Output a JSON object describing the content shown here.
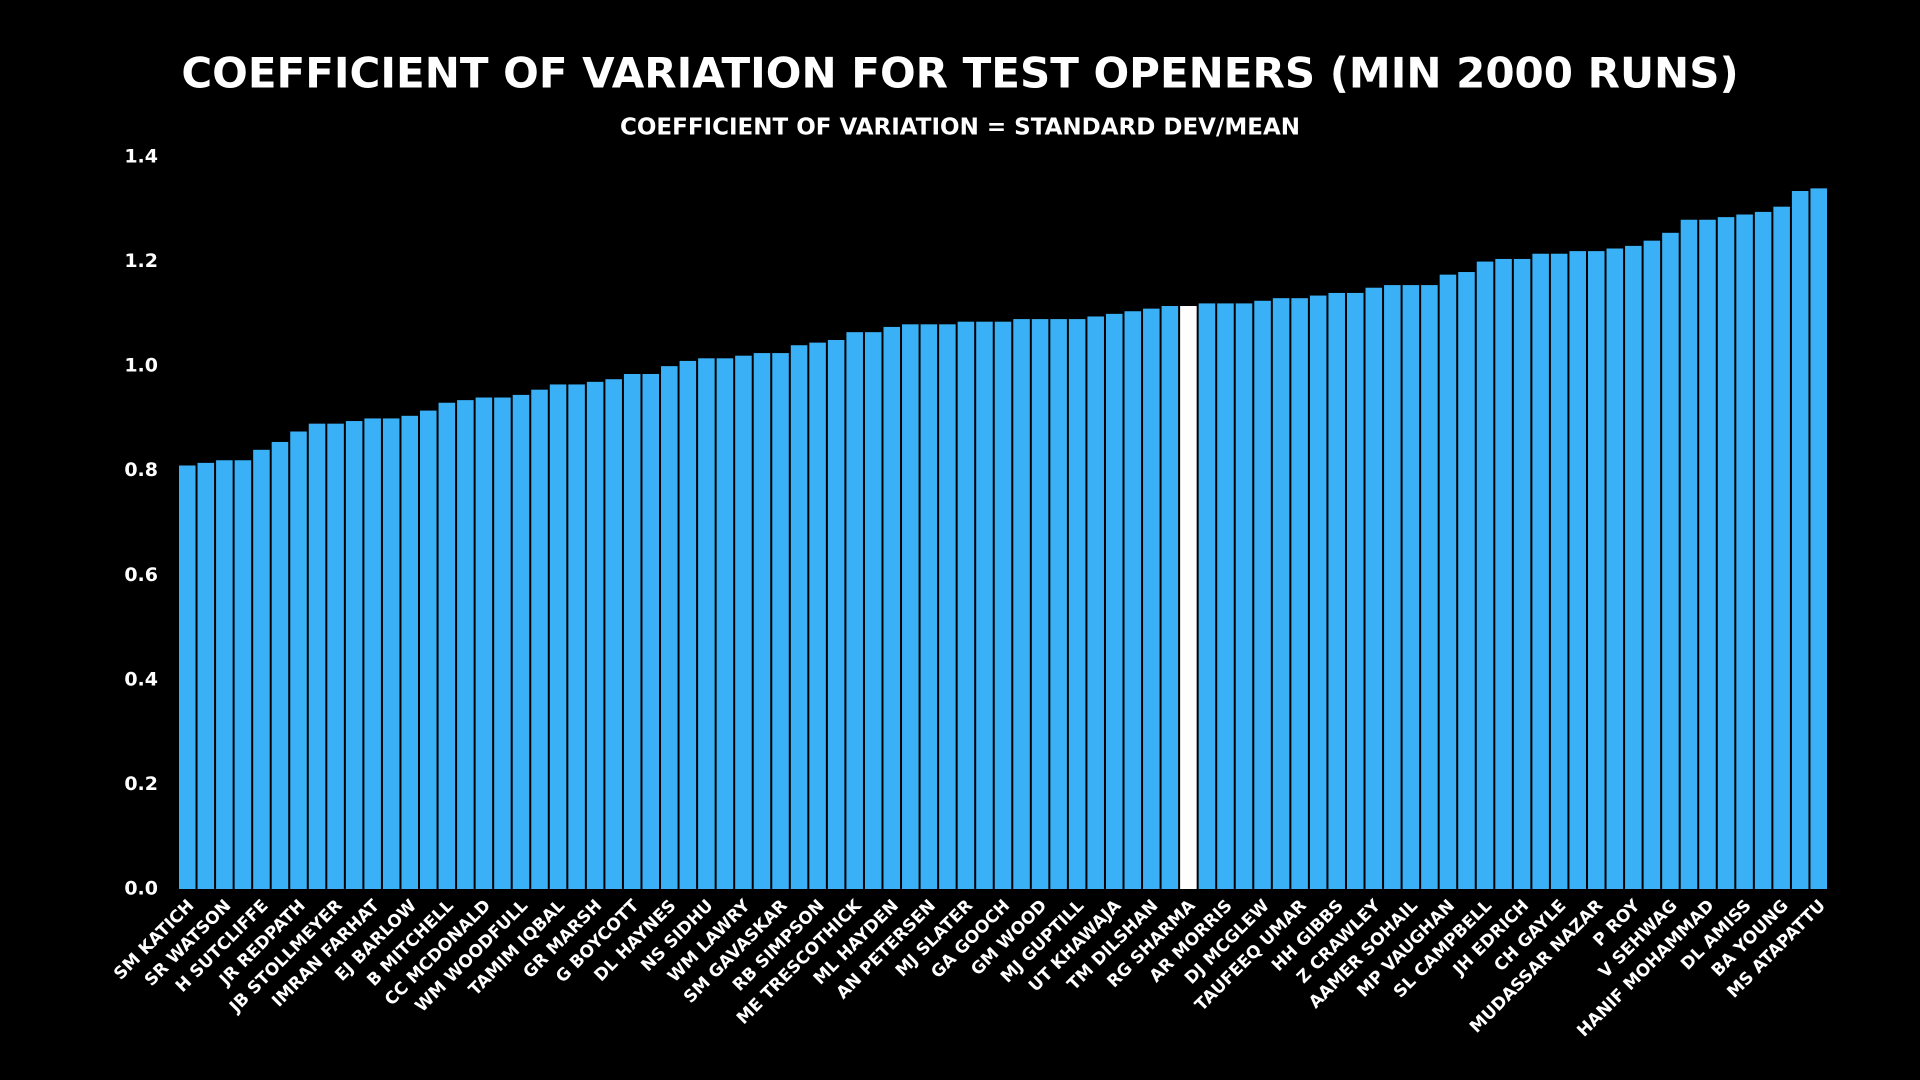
{
  "chart_data": {
    "type": "bar",
    "title": "COEFFICIENT OF VARIATION FOR TEST OPENERS (MIN 2000 RUNS)",
    "subtitle": "COEFFICIENT OF VARIATION = STANDARD DEV/MEAN",
    "categories": [
      "SM KATICH",
      null,
      "SR WATSON",
      null,
      "H SUTCLIFFE",
      null,
      "JR REDPATH",
      null,
      "JB STOLLMEYER",
      null,
      "IMRAN FARHAT",
      null,
      "EJ BARLOW",
      null,
      "B MITCHELL",
      null,
      "CC MCDONALD",
      null,
      "WM WOODFULL",
      null,
      "TAMIM IQBAL",
      null,
      "GR MARSH",
      null,
      "G BOYCOTT",
      null,
      "DL HAYNES",
      null,
      "NS SIDHU",
      null,
      "WM LAWRY",
      null,
      "SM GAVASKAR",
      null,
      "RB SIMPSON",
      null,
      "ME TRESCOTHICK",
      null,
      "ML HAYDEN",
      null,
      "AN PETERSEN",
      null,
      "MJ SLATER",
      null,
      "GA GOOCH",
      null,
      "GM WOOD",
      null,
      "MJ GUPTILL",
      null,
      "UT KHAWAJA",
      null,
      "TM DILSHAN",
      null,
      "RG SHARMA",
      null,
      "AR MORRIS",
      null,
      "DJ MCGLEW",
      null,
      "TAUFEEQ UMAR",
      null,
      "HH GIBBS",
      null,
      "Z CRAWLEY",
      null,
      "AAMER SOHAIL",
      null,
      "MP VAUGHAN",
      null,
      "SL CAMPBELL",
      null,
      "JH EDRICH",
      null,
      "CH GAYLE",
      null,
      "MUDASSAR NAZAR",
      null,
      "P ROY",
      null,
      "V SEHWAG",
      null,
      "HANIF MOHAMMAD",
      null,
      "DL AMISS",
      null,
      "BA YOUNG",
      null,
      "MS ATAPATTU"
    ],
    "values": [
      0.81,
      0.815,
      0.82,
      0.82,
      0.84,
      0.855,
      0.875,
      0.89,
      0.89,
      0.895,
      0.9,
      0.9,
      0.905,
      0.915,
      0.93,
      0.935,
      0.94,
      0.94,
      0.945,
      0.955,
      0.965,
      0.965,
      0.97,
      0.975,
      0.985,
      0.985,
      1.0,
      1.01,
      1.015,
      1.015,
      1.02,
      1.025,
      1.025,
      1.04,
      1.045,
      1.05,
      1.065,
      1.065,
      1.075,
      1.08,
      1.08,
      1.08,
      1.085,
      1.085,
      1.085,
      1.09,
      1.09,
      1.09,
      1.09,
      1.095,
      1.1,
      1.105,
      1.11,
      1.115,
      1.115,
      1.12,
      1.12,
      1.12,
      1.125,
      1.13,
      1.13,
      1.135,
      1.14,
      1.14,
      1.15,
      1.155,
      1.155,
      1.155,
      1.175,
      1.18,
      1.2,
      1.205,
      1.205,
      1.215,
      1.215,
      1.22,
      1.22,
      1.225,
      1.23,
      1.24,
      1.255,
      1.28,
      1.28,
      1.285,
      1.29,
      1.295,
      1.305,
      1.335,
      1.34
    ],
    "color": "#3ab1f6",
    "colors": {
      "54": "#ffffff"
    },
    "ylim": [
      0,
      1.4
    ],
    "yticks": [
      {
        "value": 0,
        "label": "0.0"
      },
      0.2,
      0.4,
      0.6,
      0.8,
      {
        "value": 1,
        "label": "1.0"
      },
      1.2,
      1.4
    ],
    "grid": false
  }
}
